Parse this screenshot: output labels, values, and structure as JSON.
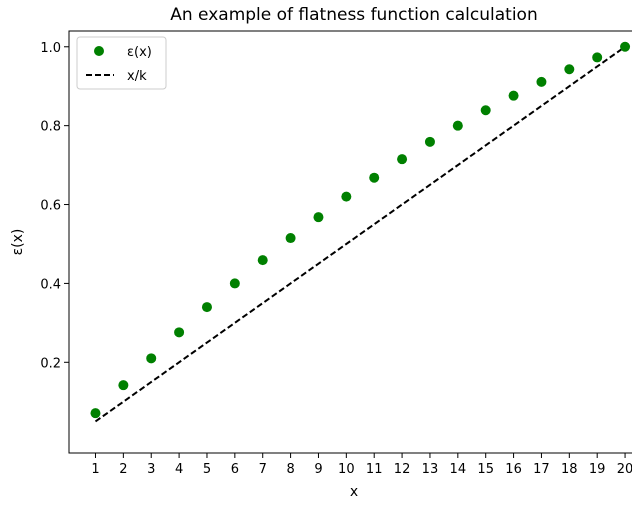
{
  "chart_data": {
    "type": "scatter",
    "title": "An example of flatness function calculation",
    "xlabel": "x",
    "ylabel": "ε(x)",
    "xlim": [
      0.05,
      20.5
    ],
    "ylim": [
      -0.03,
      1.04
    ],
    "xticks": [
      1,
      2,
      3,
      4,
      5,
      6,
      7,
      8,
      9,
      10,
      11,
      12,
      13,
      14,
      15,
      16,
      17,
      18,
      19,
      20
    ],
    "yticks": [
      0.2,
      0.4,
      0.6,
      0.8,
      1.0
    ],
    "ytick_labels": [
      "0.2",
      "0.4",
      "0.6",
      "0.8",
      "1.0"
    ],
    "grid": false,
    "legend_position": "top-left",
    "series": [
      {
        "name": "ε(x)",
        "kind": "scatter",
        "color": "#008000",
        "x": [
          1,
          2,
          3,
          4,
          5,
          6,
          7,
          8,
          9,
          10,
          11,
          12,
          13,
          14,
          15,
          16,
          17,
          18,
          19,
          20
        ],
        "y": [
          0.071,
          0.142,
          0.21,
          0.276,
          0.34,
          0.4,
          0.459,
          0.515,
          0.568,
          0.62,
          0.668,
          0.715,
          0.759,
          0.8,
          0.839,
          0.876,
          0.911,
          0.943,
          0.973,
          1.0
        ]
      },
      {
        "name": "x/k",
        "kind": "line",
        "style": "dashed",
        "color": "#000000",
        "x": [
          1,
          20
        ],
        "y": [
          0.05,
          1.0
        ]
      }
    ]
  }
}
